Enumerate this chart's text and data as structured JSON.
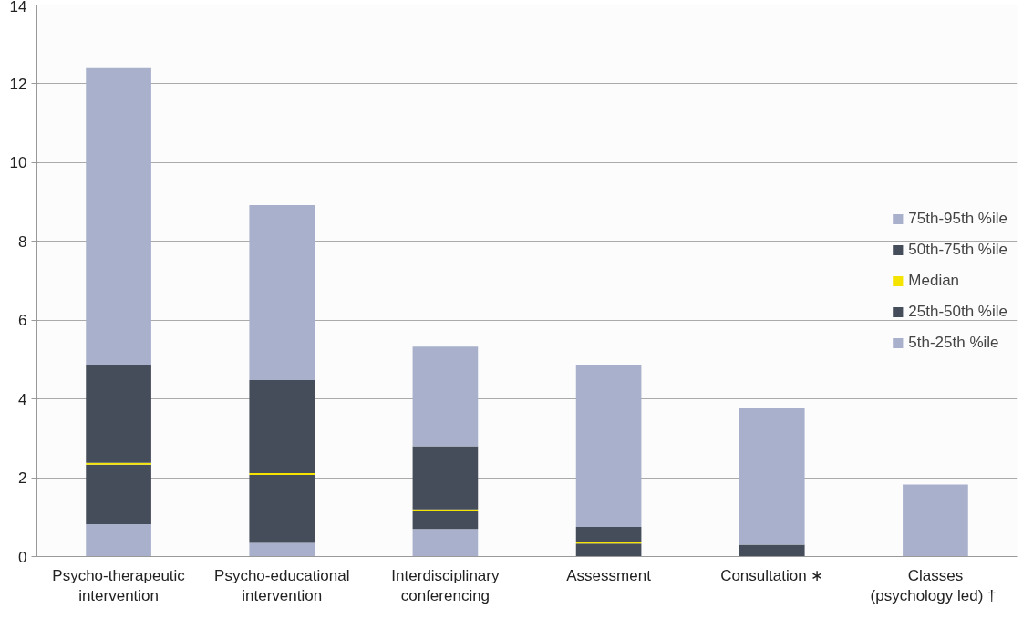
{
  "chart_data": {
    "type": "bar",
    "stacked": true,
    "categories": [
      "Psycho-therapeutic\nintervention",
      "Psycho-educational\nintervention",
      "Interdisciplinary\nconferencing",
      "Assessment",
      "Consultation ∗",
      "Classes\n(psychology led)  †"
    ],
    "series": [
      {
        "name": "5th-25th %ile",
        "color": "#a9b0cb",
        "values": [
          0.82,
          0.35,
          0.7,
          0,
          null,
          null
        ]
      },
      {
        "name": "25th-50th %ile",
        "color": "#454c5a",
        "values": [
          1.51,
          1.72,
          0.45,
          0.33,
          null,
          null
        ]
      },
      {
        "name": "Median",
        "color": "#f5e400",
        "values": [
          0.05,
          0.05,
          0.05,
          0.05,
          null,
          null
        ]
      },
      {
        "name": "50th-75th %ile",
        "color": "#454c5a",
        "values": [
          2.49,
          2.36,
          1.6,
          0.37,
          0.3,
          null
        ]
      },
      {
        "name": "75th-95th %ile",
        "color": "#a9b0cb",
        "values": [
          7.53,
          4.44,
          2.53,
          4.12,
          3.47,
          1.83
        ]
      }
    ],
    "ylim": [
      0,
      14
    ],
    "yticks": [
      0,
      2,
      4,
      6,
      8,
      10,
      12,
      14
    ],
    "grid": "y",
    "legend": "right"
  }
}
